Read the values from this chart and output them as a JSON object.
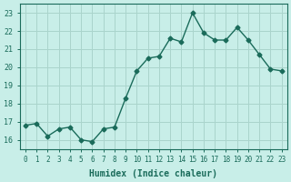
{
  "x": [
    0,
    1,
    2,
    3,
    4,
    5,
    6,
    7,
    8,
    9,
    10,
    11,
    12,
    13,
    14,
    15,
    16,
    17,
    18,
    19,
    20,
    21,
    22,
    23
  ],
  "y": [
    16.8,
    16.9,
    16.2,
    16.6,
    16.7,
    16.0,
    15.9,
    16.6,
    16.7,
    18.3,
    19.8,
    20.5,
    20.6,
    21.6,
    21.4,
    23.0,
    21.9,
    21.5,
    21.5,
    22.2,
    21.5,
    20.7,
    19.9,
    19.8
  ],
  "xlabel": "Humidex (Indice chaleur)",
  "xlim": [
    -0.5,
    23.5
  ],
  "ylim": [
    15.5,
    23.5
  ],
  "yticks": [
    16,
    17,
    18,
    19,
    20,
    21,
    22,
    23
  ],
  "xticks": [
    0,
    1,
    2,
    3,
    4,
    5,
    6,
    7,
    8,
    9,
    10,
    11,
    12,
    13,
    14,
    15,
    16,
    17,
    18,
    19,
    20,
    21,
    22,
    23
  ],
  "line_color": "#1a6b5a",
  "marker": "D",
  "marker_size": 2.5,
  "bg_color": "#c8eee8",
  "grid_color": "#aad4cc",
  "label_color": "#1a6b5a",
  "tick_color": "#1a6b5a",
  "spine_color": "#1a6b5a"
}
